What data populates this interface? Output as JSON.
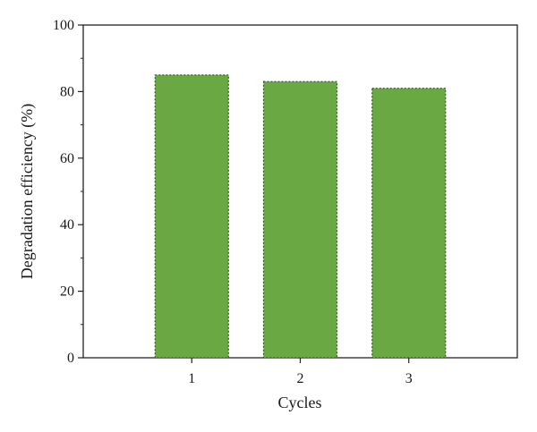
{
  "chart_data": {
    "type": "bar",
    "title": "",
    "xlabel": "Cycles",
    "ylabel": "Degradation efficiency (%)",
    "categories": [
      "1",
      "2",
      "3"
    ],
    "values": [
      85,
      83,
      81
    ],
    "ylim": [
      0,
      100
    ],
    "yticks": [
      "0",
      "20",
      "40",
      "60",
      "80",
      "100"
    ],
    "grid": false,
    "legend": "none",
    "bar_color": "#6aa844",
    "bar_edge_color": "#2f5a1c"
  }
}
